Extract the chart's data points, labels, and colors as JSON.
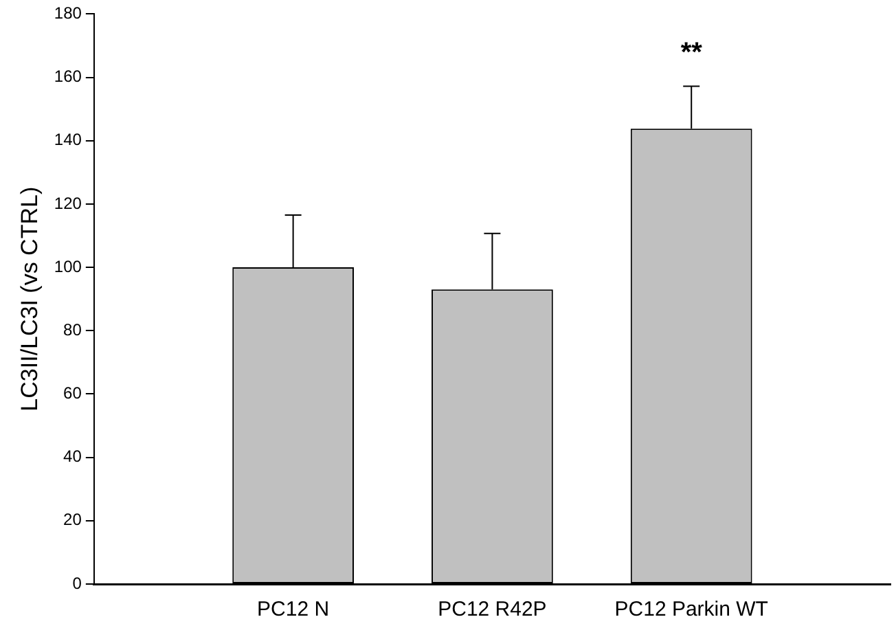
{
  "chart_data": {
    "type": "bar",
    "ylabel": "LC3II/LC3I (vs CTRL)",
    "categories": [
      null,
      "PC12 N",
      "PC12 R42P",
      "PC12 Parkin WT",
      null
    ],
    "values": [
      null,
      100,
      93,
      143.8,
      null
    ],
    "color": "#c0c0c0",
    "errors": [
      null,
      [
        100,
        116.5
      ],
      [
        93,
        110.7
      ],
      [
        143.8,
        157.2
      ],
      null
    ],
    "ylim": [
      0,
      180
    ],
    "yticks": [
      0,
      20,
      40,
      60,
      80,
      100,
      120,
      140,
      160,
      180
    ],
    "grid": false,
    "legend": false,
    "annotations": [
      "**"
    ]
  }
}
